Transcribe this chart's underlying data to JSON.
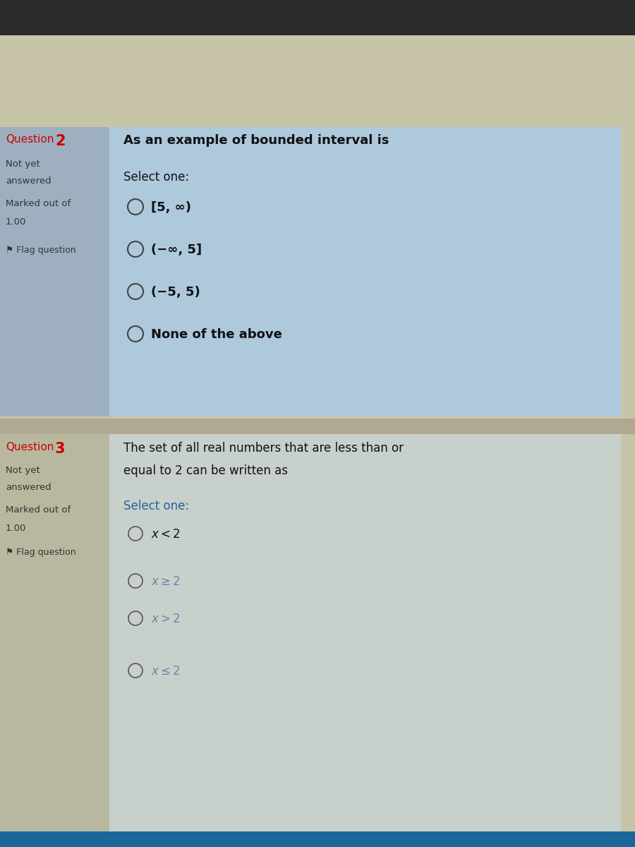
{
  "bg_top_color": "#2a2a2a",
  "bg_main_color": "#c8c4a8",
  "bg_bottom_color": "#1a6699",
  "q2_sidebar_bg": "#9eb0c0",
  "q2_content_bg": "#aec8dc",
  "q3_sidebar_bg": "#b8b8a0",
  "q3_content_bg": "#c8d0cc",
  "sep_color": "#b0a890",
  "q2_label": "Question",
  "q2_num": "2",
  "q2_status1": "Not yet",
  "q2_status2": "answered",
  "q2_marked": "Marked out of",
  "q2_score": "1.00",
  "q2_flag": "⚑ Flag question",
  "q2_question": "As an example of bounded interval is",
  "q2_select": "Select one:",
  "q2_options": [
    "[5, ∞)",
    "(−∞, 5]",
    "(−5, 5)",
    "None of the above"
  ],
  "q3_label": "Question",
  "q3_num": "3",
  "q3_status1": "Not yet",
  "q3_status2": "answered",
  "q3_marked": "Marked out of",
  "q3_score": "1.00",
  "q3_flag": "⚑ Flag question",
  "q3_question1": "The set of all real numbers that are less than or",
  "q3_question2": "equal to 2 can be written as",
  "q3_select": "Select one:",
  "q3_opt_labels": [
    "x < 2",
    "x ≥ 2",
    "x > 2",
    "x ≤ 2"
  ],
  "q3_opt_math": [
    "$x < 2$",
    "$x \\geq 2$",
    "$x > 2$",
    "$x \\leq 2$"
  ],
  "sidebar_label_color": "#cc0000",
  "sidebar_text_color": "#333333",
  "content_text_color": "#111111",
  "q3_select_color": "#226699",
  "q3_opt_colors": [
    "#111111",
    "#6688aa",
    "#6688aa",
    "#6688aa"
  ]
}
